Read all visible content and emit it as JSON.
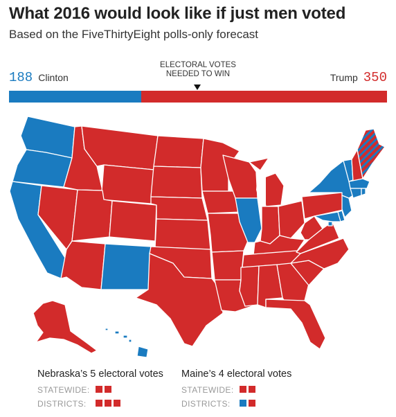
{
  "title": "What 2016 would look like if just men voted",
  "subtitle": "Based on the FiveThirtyEight polls-only forecast",
  "tally": {
    "clinton": {
      "label": "Clinton",
      "votes": 188
    },
    "trump": {
      "label": "Trump",
      "votes": 350
    },
    "needed_label": "ELECTORAL VOTES NEEDED TO WIN",
    "needed_to_win": 270,
    "total_votes": 538
  },
  "colors": {
    "dem": "#1a7bc0",
    "rep": "#d22b2b"
  },
  "states": {
    "clinton": [
      "WA",
      "OR",
      "CA",
      "NM",
      "IL",
      "NY",
      "VT",
      "MA",
      "CT",
      "RI",
      "NJ",
      "DE",
      "MD",
      "DC",
      "HI"
    ],
    "trump": [
      "ID",
      "NV",
      "UT",
      "AZ",
      "MT",
      "WY",
      "CO",
      "ND",
      "SD",
      "NE",
      "KS",
      "OK",
      "TX",
      "MN",
      "IA",
      "MO",
      "AR",
      "LA",
      "WI",
      "MI",
      "IN",
      "OH",
      "KY",
      "TN",
      "MS",
      "AL",
      "GA",
      "FL",
      "SC",
      "NC",
      "VA",
      "WV",
      "PA",
      "NH",
      "AK"
    ],
    "split": [
      "ME"
    ]
  },
  "nebraska": {
    "title": "Nebraska’s 5 electoral votes",
    "statewide_label": "STATEWIDE:",
    "districts_label": "DISTRICTS:",
    "statewide": [
      "rep",
      "rep"
    ],
    "districts": [
      "rep",
      "rep",
      "rep"
    ]
  },
  "maine": {
    "title": "Maine’s 4 electoral votes",
    "statewide_label": "STATEWIDE:",
    "districts_label": "DISTRICTS:",
    "statewide": [
      "rep",
      "rep"
    ],
    "districts": [
      "dem",
      "rep"
    ]
  }
}
